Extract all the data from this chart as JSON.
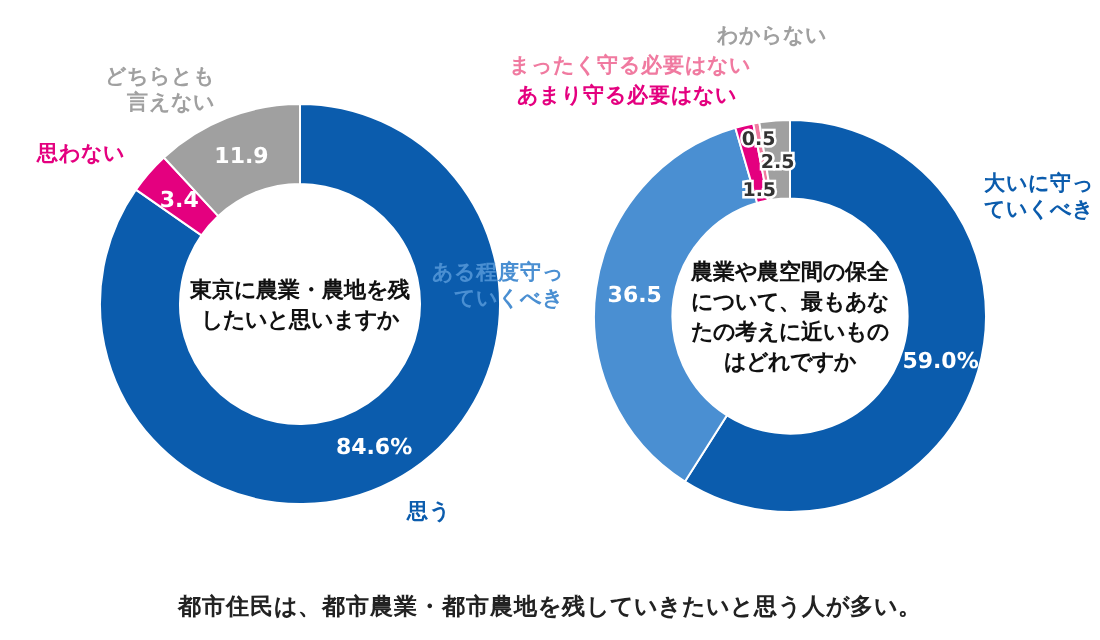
{
  "chart_data": [
    {
      "type": "donut",
      "title": "東京に農業・農地を残したいと思いますか",
      "categories": [
        "思う",
        "思わない",
        "どちらとも言えない"
      ],
      "values": [
        84.6,
        3.4,
        11.9
      ],
      "colors": [
        "#0b5cad",
        "#e4007f",
        "#a0a0a0"
      ],
      "value_labels": [
        "84.6%",
        "3.4",
        "11.9"
      ],
      "annotations": [
        "都市住民は、都市農業・都市農地を残していきたいと思う人が多い。"
      ]
    },
    {
      "type": "donut",
      "title": "農業や農空間の保全について、最もあなたの考えに近いものはどれですか",
      "categories": [
        "大いに守っていくべき",
        "ある程度守っていくべき",
        "あまり守る必要はない",
        "まったく守る必要はない",
        "わからない"
      ],
      "values": [
        59.0,
        36.5,
        1.5,
        0.5,
        2.5
      ],
      "colors": [
        "#0b5cad",
        "#4a8fd2",
        "#e4007f",
        "#f07aa0",
        "#a0a0a0"
      ],
      "value_labels": [
        "59.0%",
        "36.5",
        "1.5",
        "0.5",
        "2.5"
      ]
    }
  ]
}
